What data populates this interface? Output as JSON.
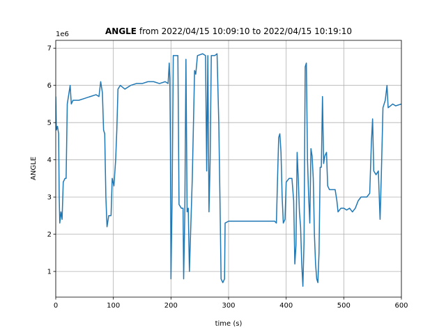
{
  "chart_data": {
    "type": "line",
    "title_bold": "ANGLE",
    "title": "from 2022/04/15 10:09:10 to 2022/04/15 10:19:10",
    "xlabel": "time (s)",
    "ylabel": "ANGLE",
    "y_offset_label": "1e6",
    "xlim": [
      0,
      600
    ],
    "xticks": [
      0,
      100,
      200,
      300,
      400,
      500,
      600
    ],
    "ylim": [
      0.31,
      7.21
    ],
    "yticks": [
      1,
      2,
      3,
      4,
      5,
      6,
      7
    ],
    "grid": true,
    "series": [
      {
        "color": "#1f77b4",
        "x": [
          0,
          1,
          3,
          5,
          6,
          7,
          9,
          11,
          13,
          16,
          18,
          20,
          22,
          25,
          27,
          30,
          40,
          50,
          60,
          70,
          75,
          78,
          81,
          83,
          85,
          87,
          89,
          92,
          96,
          98,
          101,
          104,
          106,
          108,
          112,
          120,
          130,
          140,
          150,
          160,
          170,
          180,
          190,
          195,
          197,
          198,
          199,
          200,
          202,
          204,
          208,
          212,
          214,
          218,
          221,
          222,
          224,
          226,
          228,
          230,
          232,
          235,
          237,
          241,
          243,
          246,
          255,
          260,
          262,
          264,
          266,
          268,
          270,
          276,
          280,
          283,
          285,
          287,
          290,
          293,
          294,
          300,
          320,
          340,
          360,
          380,
          383,
          385,
          387,
          389,
          391,
          393,
          395,
          398,
          400,
          405,
          410,
          413,
          415,
          417,
          419,
          421,
          423,
          425,
          427,
          429,
          431,
          433,
          435,
          437,
          439,
          441,
          443,
          445,
          447,
          449,
          451,
          453,
          455,
          457,
          459,
          461,
          463,
          465,
          467,
          470,
          472,
          475,
          480,
          485,
          488,
          490,
          495,
          500,
          505,
          510,
          515,
          520,
          525,
          530,
          535,
          540,
          545,
          548,
          550,
          552,
          556,
          560,
          562,
          563,
          565,
          568,
          572,
          575,
          577,
          585,
          590,
          600
        ],
        "values": [
          5.7,
          4.8,
          4.9,
          4.7,
          3.0,
          2.3,
          2.6,
          2.4,
          3.4,
          3.5,
          3.5,
          5.5,
          5.7,
          6.0,
          5.5,
          5.6,
          5.6,
          5.65,
          5.7,
          5.75,
          5.7,
          6.1,
          5.8,
          4.8,
          4.7,
          3.0,
          2.2,
          2.5,
          2.5,
          3.5,
          3.3,
          4.0,
          4.8,
          5.9,
          6.0,
          5.9,
          6.0,
          6.05,
          6.05,
          6.1,
          6.1,
          6.05,
          6.1,
          6.05,
          6.6,
          6.2,
          4.5,
          0.8,
          3.0,
          6.8,
          6.8,
          6.8,
          2.8,
          2.7,
          2.7,
          0.8,
          2.5,
          6.7,
          2.6,
          2.7,
          1.0,
          2.5,
          3.5,
          6.4,
          6.3,
          6.8,
          6.85,
          6.8,
          3.7,
          6.8,
          2.6,
          4.0,
          6.8,
          6.8,
          6.85,
          5.0,
          3.0,
          0.8,
          0.7,
          0.8,
          2.3,
          2.35,
          2.35,
          2.35,
          2.35,
          2.35,
          2.3,
          3.5,
          4.6,
          4.7,
          4.2,
          3.0,
          2.3,
          2.4,
          3.4,
          3.5,
          3.5,
          2.9,
          1.2,
          1.7,
          4.2,
          3.5,
          2.6,
          2.2,
          1.2,
          0.6,
          1.8,
          6.5,
          6.6,
          4.0,
          3.0,
          2.3,
          4.3,
          4.1,
          3.5,
          2.0,
          1.2,
          0.8,
          0.7,
          1.5,
          3.8,
          3.8,
          5.7,
          3.9,
          4.1,
          4.2,
          3.3,
          3.2,
          3.2,
          3.2,
          2.9,
          2.6,
          2.7,
          2.7,
          2.65,
          2.7,
          2.6,
          2.7,
          2.9,
          3.0,
          3.0,
          3.0,
          3.1,
          4.5,
          5.1,
          3.7,
          3.6,
          3.7,
          2.8,
          2.4,
          3.5,
          5.4,
          5.6,
          6.0,
          5.4,
          5.5,
          5.45,
          5.5
        ]
      }
    ]
  }
}
